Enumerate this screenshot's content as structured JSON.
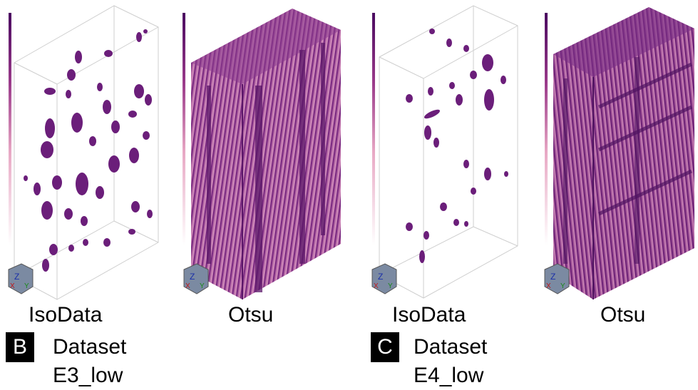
{
  "panels": [
    {
      "letter": "B",
      "dataset": "Dataset E3_low",
      "methods": [
        "IsoData",
        "Otsu"
      ]
    },
    {
      "letter": "C",
      "dataset": "Dataset E4_low",
      "methods": [
        "IsoData",
        "Otsu"
      ]
    }
  ],
  "colors": {
    "voxel": "#6b1e7a",
    "voxel_light": "#c77fb0",
    "colorbar_top": "#4a0a60",
    "colorbar_bottom": "#ffffff"
  },
  "icons": [
    "orientation-cube-icon"
  ]
}
